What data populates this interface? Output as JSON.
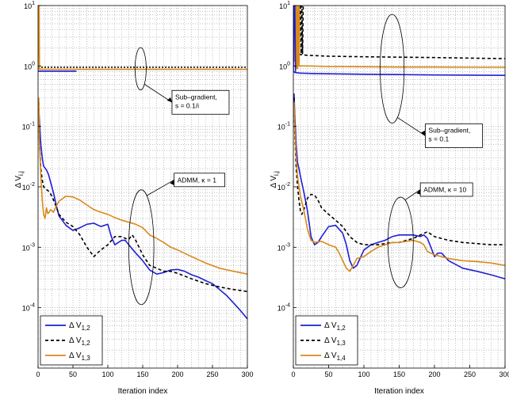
{
  "colors": {
    "blue": "#1f1fd6",
    "black": "#000000",
    "orange": "#d98a1a"
  },
  "chart_data": [
    {
      "type": "line",
      "ylog": true,
      "xlabel": "Iteration index",
      "ylabel": "Δ V",
      "ylabel_sub": "i,j",
      "xlim": [
        0,
        300
      ],
      "ylim": [
        1e-05,
        10
      ],
      "xticks": [
        "0",
        "50",
        "100",
        "150",
        "200",
        "250",
        "300"
      ],
      "yticks": [
        {
          "b": "10",
          "e": "1"
        },
        {
          "b": "10",
          "e": "0"
        },
        {
          "b": "10",
          "e": "-1"
        },
        {
          "b": "10",
          "e": "-2"
        },
        {
          "b": "10",
          "e": "-3"
        },
        {
          "b": "10",
          "e": "-4"
        }
      ],
      "grid": true,
      "legend_position": "bottom-left",
      "annotations": [
        {
          "lines": [
            "Sub–gradient,",
            "s = 0.1/i"
          ],
          "ex": 147,
          "ey": 0.9,
          "erx": 8,
          "ery_dec": 0.35,
          "bx": 192,
          "by": 0.25,
          "bw": 72,
          "bh": 30
        },
        {
          "lines": [
            "ADMM, κ = 1"
          ],
          "ex": 148,
          "ey": 0.001,
          "erx": 18,
          "ery_dec": 0.95,
          "bx": 195,
          "by": 0.013,
          "bw": 64,
          "bh": 17
        }
      ],
      "series": [
        {
          "name": "Δ V",
          "sub": "1,2",
          "color": "blue",
          "dash": "",
          "x": [
            1,
            2,
            4,
            6,
            8,
            12,
            15,
            18,
            22,
            26,
            30,
            40,
            50,
            60,
            70,
            80,
            90,
            100,
            105,
            110,
            115,
            120,
            125,
            130,
            140,
            150,
            160,
            170,
            180,
            190,
            200,
            210,
            220,
            230,
            240,
            250,
            260,
            270,
            280,
            290,
            300
          ],
          "y": [
            0.2,
            0.12,
            0.05,
            0.03,
            0.022,
            0.019,
            0.016,
            0.012,
            0.008,
            0.005,
            0.0033,
            0.0023,
            0.0019,
            0.0021,
            0.0024,
            0.0025,
            0.0022,
            0.0024,
            0.0015,
            0.0011,
            0.0012,
            0.0013,
            0.0013,
            0.0011,
            0.0008,
            0.0006,
            0.00042,
            0.00036,
            0.00038,
            0.00042,
            0.00043,
            0.0004,
            0.00035,
            0.00032,
            0.00028,
            0.00025,
            0.0002,
            0.00016,
            0.00012,
            9e-05,
            6.5e-05
          ]
        },
        {
          "name": "Δ V",
          "sub": "1,2",
          "color": "black",
          "dash": "4,3",
          "x": [
            1,
            2,
            4,
            6,
            8,
            12,
            15,
            20,
            25,
            30,
            40,
            50,
            60,
            70,
            80,
            85,
            90,
            100,
            110,
            120,
            125,
            130,
            135,
            140,
            150,
            160,
            170,
            180,
            190,
            200,
            220,
            240,
            260,
            280,
            300
          ],
          "y": [
            0.25,
            0.05,
            0.02,
            0.013,
            0.01,
            0.009,
            0.0085,
            0.007,
            0.005,
            0.0035,
            0.0026,
            0.0022,
            0.0016,
            0.001,
            0.0007,
            0.0008,
            0.0009,
            0.0011,
            0.0015,
            0.0015,
            0.0014,
            0.00135,
            0.0016,
            0.0013,
            0.00075,
            0.0005,
            0.00045,
            0.0004,
            0.0004,
            0.00037,
            0.0003,
            0.00025,
            0.00022,
            0.0002,
            0.000185
          ]
        },
        {
          "name": "Δ V",
          "sub": "1,3",
          "color": "orange",
          "dash": "",
          "x": [
            1,
            2,
            4,
            6,
            8,
            10,
            12,
            14,
            16,
            18,
            22,
            26,
            30,
            40,
            50,
            60,
            70,
            80,
            90,
            100,
            110,
            120,
            130,
            140,
            150,
            160,
            170,
            180,
            190,
            200,
            220,
            240,
            260,
            280,
            300
          ],
          "y": [
            0.3,
            0.05,
            0.015,
            0.006,
            0.0035,
            0.003,
            0.0045,
            0.0036,
            0.0038,
            0.0042,
            0.0038,
            0.0048,
            0.0058,
            0.007,
            0.0068,
            0.006,
            0.005,
            0.0042,
            0.0038,
            0.0035,
            0.0031,
            0.0028,
            0.0026,
            0.0024,
            0.0021,
            0.0016,
            0.0014,
            0.0012,
            0.001,
            0.0009,
            0.0007,
            0.00055,
            0.00045,
            0.0004,
            0.00036
          ]
        },
        {
          "name": "",
          "sub": "",
          "color": "blue",
          "dash": "",
          "x": [
            0,
            1,
            2,
            10,
            20,
            40,
            55
          ],
          "y": [
            0.82,
            0.82,
            0.82,
            0.82,
            0.82,
            0.82,
            0.82
          ]
        },
        {
          "name": "",
          "sub": "",
          "color": "black",
          "dash": "2,2",
          "x": [
            0,
            10,
            30,
            60,
            100,
            150,
            200,
            250,
            300
          ],
          "y": [
            0.95,
            0.95,
            0.95,
            0.95,
            0.95,
            0.95,
            0.95,
            0.95,
            0.95
          ]
        },
        {
          "name": "",
          "sub": "",
          "color": "orange",
          "dash": "",
          "x": [
            0,
            1,
            10,
            30,
            60,
            100,
            150,
            200,
            250,
            300
          ],
          "y": [
            0.88,
            0.88,
            0.88,
            0.88,
            0.88,
            0.88,
            0.88,
            0.88,
            0.88,
            0.88
          ]
        },
        {
          "name": "",
          "sub": "",
          "color": "orange",
          "dash": "",
          "x": [
            0,
            0.5,
            1,
            1.5,
            2
          ],
          "y": [
            0.88,
            10,
            10,
            10,
            0.88
          ]
        }
      ],
      "legend": [
        0,
        1,
        2
      ]
    },
    {
      "type": "line",
      "ylog": true,
      "xlabel": "Iteration index",
      "ylabel": "Δ V",
      "ylabel_sub": "i,j",
      "xlim": [
        0,
        300
      ],
      "ylim": [
        1e-05,
        10
      ],
      "xticks": [
        "0",
        "50",
        "100",
        "150",
        "200",
        "250",
        "300"
      ],
      "yticks": [
        {
          "b": "10",
          "e": "1"
        },
        {
          "b": "10",
          "e": "0"
        },
        {
          "b": "10",
          "e": "-1"
        },
        {
          "b": "10",
          "e": "-2"
        },
        {
          "b": "10",
          "e": "-3"
        },
        {
          "b": "10",
          "e": "-4"
        }
      ],
      "grid": true,
      "legend_position": "bottom-left",
      "annotations": [
        {
          "lines": [
            "Sub–gradient,",
            "s = 0.1"
          ],
          "ex": 140,
          "ey": 0.9,
          "erx": 17,
          "ery_dec": 0.9,
          "bx": 187,
          "by": 0.07,
          "bw": 72,
          "bh": 30
        },
        {
          "lines": [
            "ADMM, κ = 10"
          ],
          "ex": 152,
          "ey": 0.0012,
          "erx": 18,
          "ery_dec": 0.75,
          "bx": 180,
          "by": 0.009,
          "bw": 66,
          "bh": 17
        }
      ],
      "series": [
        {
          "name": "Δ V",
          "sub": "1,2",
          "color": "blue",
          "dash": "",
          "x": [
            1,
            2,
            4,
            6,
            8,
            10,
            15,
            20,
            25,
            30,
            35,
            40,
            50,
            60,
            70,
            75,
            80,
            85,
            90,
            100,
            110,
            120,
            130,
            140,
            150,
            160,
            170,
            180,
            185,
            190,
            195,
            200,
            205,
            210,
            220,
            240,
            260,
            280,
            300
          ],
          "y": [
            0.35,
            0.15,
            0.05,
            0.025,
            0.02,
            0.015,
            0.008,
            0.004,
            0.0015,
            0.0011,
            0.0012,
            0.0015,
            0.0022,
            0.0023,
            0.0017,
            0.0011,
            0.0006,
            0.00045,
            0.0005,
            0.0009,
            0.0011,
            0.0012,
            0.0013,
            0.0015,
            0.0016,
            0.0016,
            0.0016,
            0.0015,
            0.0016,
            0.0014,
            0.001,
            0.0007,
            0.0008,
            0.0008,
            0.0006,
            0.00045,
            0.0004,
            0.00035,
            0.0003
          ]
        },
        {
          "name": "Δ V",
          "sub": "1,3",
          "color": "black",
          "dash": "4,3",
          "x": [
            1,
            2,
            4,
            6,
            8,
            10,
            12,
            15,
            20,
            25,
            30,
            35,
            40,
            50,
            60,
            70,
            80,
            90,
            100,
            110,
            120,
            130,
            140,
            150,
            160,
            170,
            180,
            190,
            200,
            220,
            240,
            260,
            280,
            300
          ],
          "y": [
            0.3,
            0.08,
            0.02,
            0.01,
            0.006,
            0.004,
            0.0035,
            0.0042,
            0.0065,
            0.0075,
            0.0073,
            0.006,
            0.0045,
            0.0035,
            0.0028,
            0.0022,
            0.0015,
            0.0012,
            0.0011,
            0.0011,
            0.0011,
            0.00115,
            0.0012,
            0.0012,
            0.0013,
            0.0014,
            0.0016,
            0.0018,
            0.0015,
            0.0013,
            0.0012,
            0.00115,
            0.0011,
            0.0011
          ]
        },
        {
          "name": "Δ V",
          "sub": "1,4",
          "color": "orange",
          "dash": "",
          "x": [
            1,
            2,
            4,
            6,
            8,
            10,
            15,
            20,
            25,
            30,
            40,
            50,
            60,
            65,
            70,
            75,
            80,
            85,
            90,
            100,
            110,
            120,
            130,
            140,
            150,
            160,
            170,
            180,
            185,
            190,
            200,
            210,
            220,
            240,
            260,
            280,
            300
          ],
          "y": [
            0.25,
            0.1,
            0.03,
            0.015,
            0.01,
            0.007,
            0.004,
            0.002,
            0.0013,
            0.0012,
            0.00125,
            0.0011,
            0.001,
            0.0008,
            0.0006,
            0.00045,
            0.0004,
            0.0005,
            0.00065,
            0.0007,
            0.00085,
            0.001,
            0.0011,
            0.0012,
            0.0012,
            0.00125,
            0.0013,
            0.0012,
            0.0011,
            0.00085,
            0.00075,
            0.0007,
            0.00065,
            0.0006,
            0.00058,
            0.00055,
            0.0005
          ]
        },
        {
          "name": "",
          "sub": "",
          "color": "blue",
          "dash": "",
          "x": [
            0,
            1,
            2,
            10,
            30,
            60,
            100,
            150,
            200,
            250,
            300
          ],
          "y": [
            0.8,
            0.8,
            0.78,
            0.76,
            0.75,
            0.74,
            0.73,
            0.72,
            0.71,
            0.705,
            0.7
          ]
        },
        {
          "name": "",
          "sub": "",
          "color": "black",
          "dash": "4,3",
          "x": [
            0,
            10,
            20,
            50,
            100,
            150,
            200,
            250,
            300
          ],
          "y": [
            1.6,
            1.55,
            1.5,
            1.45,
            1.42,
            1.4,
            1.38,
            1.35,
            1.32
          ]
        },
        {
          "name": "",
          "sub": "",
          "color": "orange",
          "dash": "",
          "x": [
            0,
            1,
            20,
            50,
            100,
            150,
            200,
            250,
            300
          ],
          "y": [
            1.0,
            1.0,
            1.0,
            0.98,
            0.97,
            0.96,
            0.96,
            0.95,
            0.95
          ]
        },
        {
          "name": "",
          "sub": "",
          "color": "orange",
          "dash": "",
          "x": [
            0,
            1,
            2,
            3,
            4,
            5,
            6,
            7,
            8,
            9
          ],
          "y": [
            1.0,
            10,
            1.2,
            10,
            0.9,
            10,
            0.9,
            10,
            1.0,
            10
          ]
        },
        {
          "name": "",
          "sub": "",
          "color": "blue",
          "dash": "",
          "x": [
            0,
            1,
            2,
            3
          ],
          "y": [
            0.8,
            10,
            10,
            0.8
          ]
        },
        {
          "name": "",
          "sub": "",
          "color": "black",
          "dash": "4,3",
          "x": [
            10,
            11,
            12,
            13,
            14
          ],
          "y": [
            10,
            1.6,
            10,
            1.6,
            10
          ]
        }
      ],
      "legend": [
        0,
        1,
        2
      ]
    }
  ]
}
